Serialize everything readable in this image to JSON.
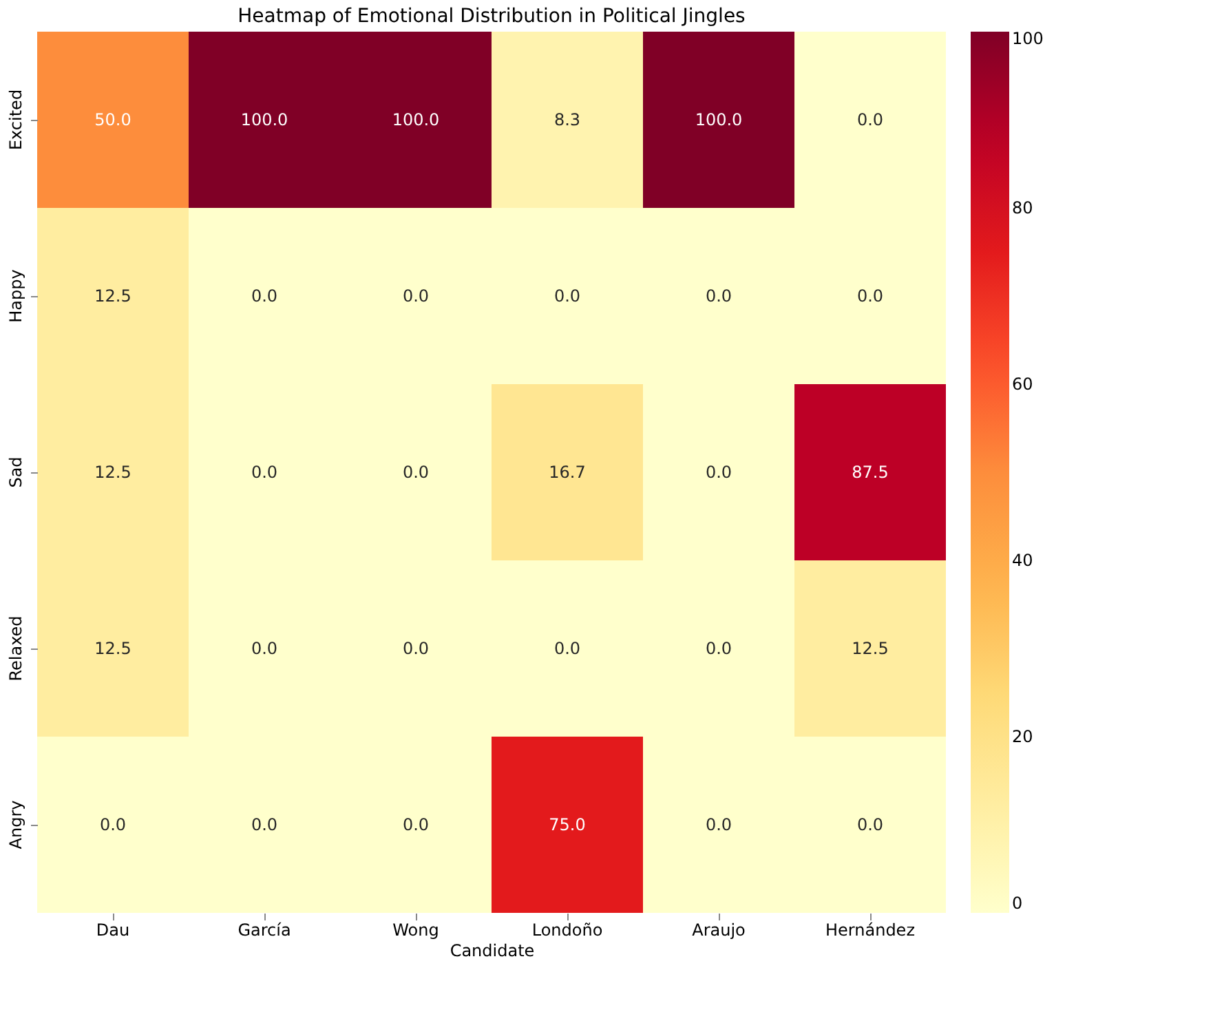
{
  "chart_data": {
    "type": "heatmap",
    "title": "Heatmap of Emotional Distribution in Political Jingles",
    "xlabel": "Candidate",
    "categories": [
      "Dau",
      "García",
      "Wong",
      "Londoño",
      "Araujo",
      "Hernández"
    ],
    "y_categories": [
      "Excited",
      "Happy",
      "Sad",
      "Relaxed",
      "Angry"
    ],
    "cells": [
      [
        50.0,
        100.0,
        100.0,
        8.3,
        100.0,
        0.0
      ],
      [
        12.5,
        0.0,
        0.0,
        0.0,
        0.0,
        0.0
      ],
      [
        12.5,
        0.0,
        0.0,
        16.7,
        0.0,
        87.5
      ],
      [
        12.5,
        0.0,
        0.0,
        0.0,
        0.0,
        12.5
      ],
      [
        0.0,
        0.0,
        0.0,
        75.0,
        0.0,
        0.0
      ]
    ],
    "cell_labels": [
      [
        "50.0",
        "100.0",
        "100.0",
        "8.3",
        "100.0",
        "0.0"
      ],
      [
        "12.5",
        "0.0",
        "0.0",
        "0.0",
        "0.0",
        "0.0"
      ],
      [
        "12.5",
        "0.0",
        "0.0",
        "16.7",
        "0.0",
        "87.5"
      ],
      [
        "12.5",
        "0.0",
        "0.0",
        "0.0",
        "0.0",
        "12.5"
      ],
      [
        "0.0",
        "0.0",
        "0.0",
        "75.0",
        "0.0",
        "0.0"
      ]
    ],
    "clim": [
      0,
      100
    ],
    "cticks": [
      0,
      20,
      40,
      60,
      80,
      100
    ],
    "data_labels": true
  }
}
